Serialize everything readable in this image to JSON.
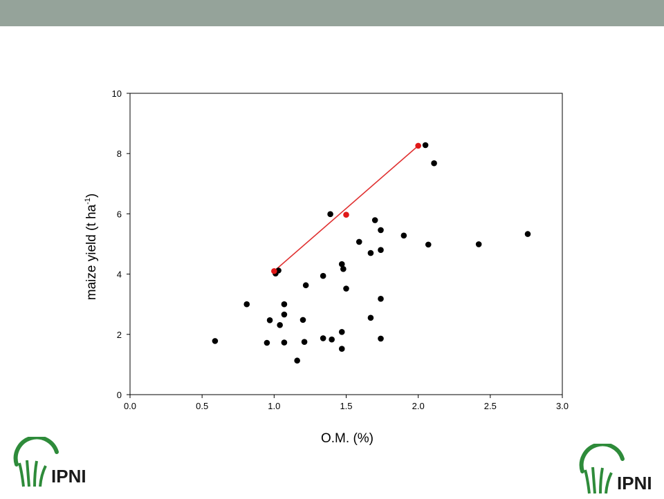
{
  "theme": {
    "bar_color": "#95a39a",
    "point_color": "#000000",
    "highlight_color": "#e01818",
    "line_color": "#e03030",
    "logo_green": "#2e8b3a",
    "logo_text_color": "#1a1a1a"
  },
  "logo": {
    "text": "IPNI",
    "icon": "ipni-wheat-logo-icon"
  },
  "chart_data": {
    "type": "scatter",
    "xlabel": "O.M. (%)",
    "ylabel_parts": {
      "main": "maize yield (t ha",
      "sup": "-1",
      "close": ")"
    },
    "xlim": [
      0,
      3.0
    ],
    "ylim": [
      0,
      10
    ],
    "xticks": [
      "0.0",
      "0.5",
      "1.0",
      "1.5",
      "2.0",
      "2.5",
      "3.0"
    ],
    "yticks": [
      "0",
      "2",
      "4",
      "6",
      "8",
      "10"
    ],
    "grid": false,
    "points": [
      {
        "x": 0.59,
        "y": 1.78
      },
      {
        "x": 0.81,
        "y": 3.0
      },
      {
        "x": 0.95,
        "y": 1.72
      },
      {
        "x": 0.97,
        "y": 2.47
      },
      {
        "x": 1.01,
        "y": 4.02
      },
      {
        "x": 1.03,
        "y": 4.12
      },
      {
        "x": 1.04,
        "y": 2.31
      },
      {
        "x": 1.07,
        "y": 2.66
      },
      {
        "x": 1.07,
        "y": 3.0
      },
      {
        "x": 1.07,
        "y": 1.73
      },
      {
        "x": 1.16,
        "y": 1.13
      },
      {
        "x": 1.2,
        "y": 2.48
      },
      {
        "x": 1.21,
        "y": 1.75
      },
      {
        "x": 1.22,
        "y": 3.63
      },
      {
        "x": 1.34,
        "y": 3.94
      },
      {
        "x": 1.34,
        "y": 1.87
      },
      {
        "x": 1.39,
        "y": 5.99
      },
      {
        "x": 1.4,
        "y": 1.83
      },
      {
        "x": 1.47,
        "y": 4.33
      },
      {
        "x": 1.47,
        "y": 2.08
      },
      {
        "x": 1.47,
        "y": 1.52
      },
      {
        "x": 1.48,
        "y": 4.17
      },
      {
        "x": 1.5,
        "y": 3.52
      },
      {
        "x": 1.59,
        "y": 5.07
      },
      {
        "x": 1.67,
        "y": 4.7
      },
      {
        "x": 1.67,
        "y": 2.55
      },
      {
        "x": 1.7,
        "y": 5.79
      },
      {
        "x": 1.74,
        "y": 5.46
      },
      {
        "x": 1.74,
        "y": 4.8
      },
      {
        "x": 1.74,
        "y": 3.18
      },
      {
        "x": 1.74,
        "y": 1.86
      },
      {
        "x": 1.9,
        "y": 5.28
      },
      {
        "x": 2.05,
        "y": 8.28
      },
      {
        "x": 2.07,
        "y": 4.98
      },
      {
        "x": 2.11,
        "y": 7.68
      },
      {
        "x": 2.42,
        "y": 4.99
      },
      {
        "x": 2.76,
        "y": 5.33
      }
    ],
    "highlight_points": [
      {
        "x": 1.0,
        "y": 4.1
      },
      {
        "x": 1.5,
        "y": 5.97
      },
      {
        "x": 2.0,
        "y": 8.26
      }
    ],
    "line": [
      {
        "x": 1.0,
        "y": 4.1
      },
      {
        "x": 2.0,
        "y": 8.26
      }
    ]
  }
}
